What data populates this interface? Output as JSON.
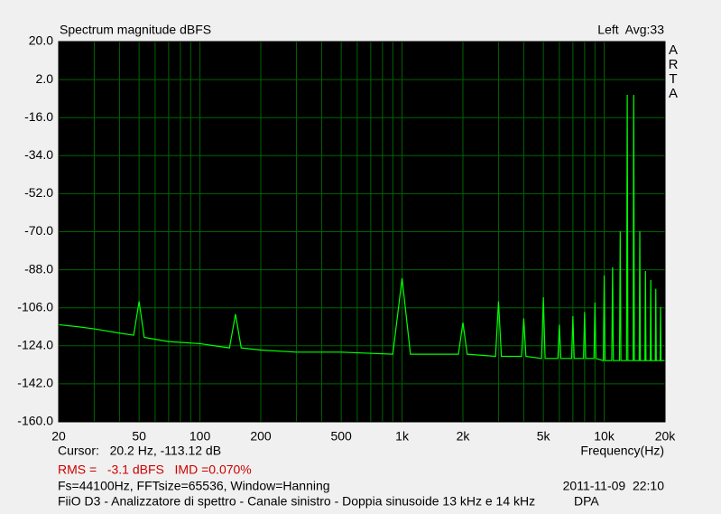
{
  "chart_data": {
    "type": "line",
    "title": "Spectrum magnitude dBFS",
    "channel_info": "Left  Avg:33",
    "brand": "ARTA",
    "x_label": "Frequency(Hz)",
    "cursor": "Cursor:   20.2 Hz, -113.12 dB",
    "rms_imd": "RMS =   -3.1 dBFS   IMD =0.070%",
    "settings": "Fs=44100Hz, FFTsize=65536, Window=Hanning",
    "timestamp": "2011-11-09  22:10",
    "description": "FiiO D3 - Analizzatore di spettro - Canale sinistro - Doppia sinusoide 13 kHz e 14 kHz",
    "tag": "DPA",
    "log_x": true,
    "grid": true,
    "color": "#00ff00",
    "grid_color": "#006400",
    "plot_background": "#000000",
    "xlim": [
      20,
      20000
    ],
    "ylim": [
      -160,
      20
    ],
    "xticks": [
      20,
      50,
      100,
      200,
      500,
      {
        "value": 1000,
        "label": "1k"
      },
      {
        "value": 2000,
        "label": "2k"
      },
      {
        "value": 5000,
        "label": "5k"
      },
      {
        "value": 10000,
        "label": "10k"
      },
      {
        "value": 20000,
        "label": "20k"
      }
    ],
    "xminor": [
      30,
      40,
      60,
      70,
      80,
      90,
      300,
      400,
      600,
      700,
      800,
      900,
      3000,
      4000,
      6000,
      7000,
      8000,
      9000
    ],
    "yticks": [
      {
        "value": 20,
        "label": "20.0"
      },
      {
        "value": 2,
        "label": "2.0"
      },
      {
        "value": -16,
        "label": "-16.0"
      },
      {
        "value": -34,
        "label": "-34.0"
      },
      {
        "value": -52,
        "label": "-52.0"
      },
      {
        "value": -70,
        "label": "-70.0"
      },
      {
        "value": -88,
        "label": "-88.0"
      },
      {
        "value": -106,
        "label": "-106.0"
      },
      {
        "value": -124,
        "label": "-124.0"
      },
      {
        "value": -142,
        "label": "-142.0"
      },
      {
        "value": -160,
        "label": "-160.0"
      }
    ],
    "x": [
      20,
      25,
      30,
      40,
      47,
      50,
      53,
      70,
      100,
      140,
      150,
      160,
      200,
      300,
      500,
      900,
      1000,
      1100,
      1900,
      2000,
      2100,
      2900,
      3000,
      3100,
      3900,
      4000,
      4100,
      4900,
      5000,
      5100,
      5900,
      6000,
      6100,
      6900,
      7000,
      7100,
      7900,
      8000,
      8100,
      8900,
      9000,
      9100,
      9900,
      10000,
      10100,
      10900,
      11000,
      11100,
      11900,
      12000,
      12100,
      12900,
      13000,
      13100,
      13900,
      14000,
      14100,
      14900,
      15000,
      15100,
      15900,
      16000,
      16100,
      16900,
      17000,
      17100,
      17900,
      18000,
      18100,
      18900,
      19000,
      19100,
      20000
    ],
    "values": [
      -114,
      -115,
      -116,
      -118,
      -119,
      -103,
      -120,
      -122,
      -123,
      -125,
      -109,
      -125,
      -126,
      -127,
      -127,
      -128,
      -92,
      -128,
      -128,
      -113,
      -128,
      -129,
      -103,
      -129,
      -129,
      -111,
      -129,
      -130,
      -101,
      -130,
      -130,
      -114,
      -130,
      -130,
      -110,
      -130,
      -130,
      -108,
      -130,
      -130,
      -103.5,
      -130,
      -131,
      -90.7,
      -131,
      -131,
      -86.9,
      -131,
      -131,
      -69.8,
      -131,
      -131,
      -5.2,
      -131,
      -131,
      -5.2,
      -131,
      -131,
      -69.8,
      -131,
      -131,
      -88.6,
      -131,
      -131,
      -92.9,
      -131,
      -131,
      -97,
      -131,
      -131,
      -105.7,
      -131,
      -131
    ]
  }
}
